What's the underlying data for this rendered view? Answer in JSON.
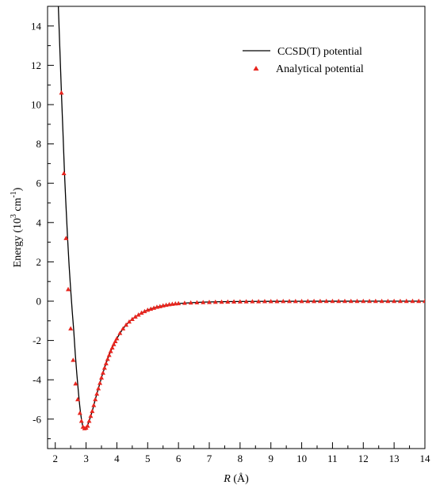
{
  "chart_data": {
    "type": "line",
    "xlabel_italic": "R",
    "xlabel_rest": " (Å)",
    "ylabel_main": "Energy (10",
    "ylabel_sup1": "3",
    "ylabel_mid": " cm",
    "ylabel_sup2": "-1",
    "ylabel_end": ")",
    "xlim": [
      1.75,
      14
    ],
    "ylim": [
      -7.5,
      15
    ],
    "x_ticks": [
      "2",
      "3",
      "4",
      "5",
      "6",
      "7",
      "8",
      "9",
      "10",
      "11",
      "12",
      "13",
      "14"
    ],
    "y_ticks": [
      "-6",
      "-4",
      "-2",
      "0",
      "2",
      "4",
      "6",
      "8",
      "10",
      "12",
      "14"
    ],
    "legend_position": "top-right",
    "series": [
      {
        "name": "CCSD(T) potential",
        "style": "line",
        "color": "#000000",
        "x": [
          2.1,
          2.2,
          2.25,
          2.3,
          2.35,
          2.4,
          2.45,
          2.5,
          2.55,
          2.6,
          2.65,
          2.7,
          2.75,
          2.8,
          2.85,
          2.9,
          2.95,
          3.0,
          3.05,
          3.1,
          3.2,
          3.3,
          3.4,
          3.5,
          3.6,
          3.7,
          3.8,
          3.9,
          4.0,
          4.2,
          4.4,
          4.6,
          4.8,
          5.0,
          5.3,
          5.6,
          6.0,
          6.5,
          7.0,
          7.5,
          8.0,
          9.0,
          10.0,
          11.0,
          12.0,
          13.0,
          14.0
        ],
        "y": [
          15.0,
          10.6,
          8.6,
          6.5,
          4.8,
          3.2,
          1.8,
          0.6,
          -0.5,
          -1.5,
          -2.7,
          -3.7,
          -4.6,
          -5.4,
          -6.0,
          -6.4,
          -6.5,
          -6.45,
          -6.3,
          -6.1,
          -5.6,
          -5.0,
          -4.45,
          -3.9,
          -3.4,
          -2.95,
          -2.55,
          -2.2,
          -1.9,
          -1.4,
          -1.05,
          -0.8,
          -0.6,
          -0.45,
          -0.3,
          -0.2,
          -0.12,
          -0.07,
          -0.04,
          -0.025,
          -0.015,
          -0.007,
          -0.004,
          -0.002,
          -0.001,
          -0.001,
          0.0
        ]
      },
      {
        "name": "Analytical potential",
        "style": "markers",
        "marker": "triangle",
        "color": "#e8261f",
        "x": [
          2.2,
          2.28,
          2.35,
          2.42,
          2.5,
          2.58,
          2.66,
          2.73,
          2.8,
          2.85,
          2.9,
          2.95,
          3.0,
          3.05,
          3.1,
          3.15,
          3.2,
          3.25,
          3.3,
          3.35,
          3.4,
          3.45,
          3.5,
          3.55,
          3.6,
          3.65,
          3.7,
          3.75,
          3.8,
          3.85,
          3.9,
          3.95,
          4.0,
          4.1,
          4.2,
          4.3,
          4.4,
          4.5,
          4.6,
          4.7,
          4.8,
          4.9,
          5.0,
          5.1,
          5.2,
          5.3,
          5.4,
          5.5,
          5.6,
          5.7,
          5.8,
          5.9,
          6.0,
          6.2,
          6.4,
          6.6,
          6.8,
          7.0,
          7.2,
          7.4,
          7.6,
          7.8,
          8.0,
          8.2,
          8.4,
          8.6,
          8.8,
          9.0,
          9.2,
          9.4,
          9.6,
          9.8,
          10.0,
          10.2,
          10.4,
          10.6,
          10.8,
          11.0,
          11.2,
          11.4,
          11.6,
          11.8,
          12.0,
          12.2,
          12.4,
          12.6,
          12.8,
          13.0,
          13.2,
          13.4,
          13.6,
          13.8,
          14.0
        ],
        "y": [
          10.6,
          6.5,
          3.2,
          0.6,
          -1.4,
          -3.0,
          -4.2,
          -5.0,
          -5.7,
          -6.1,
          -6.4,
          -6.48,
          -6.45,
          -6.35,
          -6.1,
          -5.85,
          -5.6,
          -5.3,
          -5.0,
          -4.72,
          -4.45,
          -4.17,
          -3.9,
          -3.65,
          -3.4,
          -3.17,
          -2.95,
          -2.75,
          -2.55,
          -2.37,
          -2.2,
          -2.05,
          -1.9,
          -1.63,
          -1.4,
          -1.21,
          -1.05,
          -0.92,
          -0.8,
          -0.7,
          -0.6,
          -0.52,
          -0.45,
          -0.4,
          -0.35,
          -0.3,
          -0.27,
          -0.23,
          -0.2,
          -0.17,
          -0.15,
          -0.13,
          -0.12,
          -0.1,
          -0.085,
          -0.075,
          -0.065,
          -0.055,
          -0.048,
          -0.042,
          -0.036,
          -0.03,
          -0.026,
          -0.022,
          -0.019,
          -0.016,
          -0.014,
          -0.012,
          -0.01,
          -0.009,
          -0.008,
          -0.007,
          -0.006,
          -0.005,
          -0.005,
          -0.004,
          -0.004,
          -0.003,
          -0.003,
          -0.003,
          -0.002,
          -0.002,
          -0.002,
          -0.002,
          -0.001,
          -0.001,
          -0.001,
          -0.001,
          -0.001,
          0.0,
          0.0,
          0.0,
          0.0
        ]
      }
    ]
  }
}
